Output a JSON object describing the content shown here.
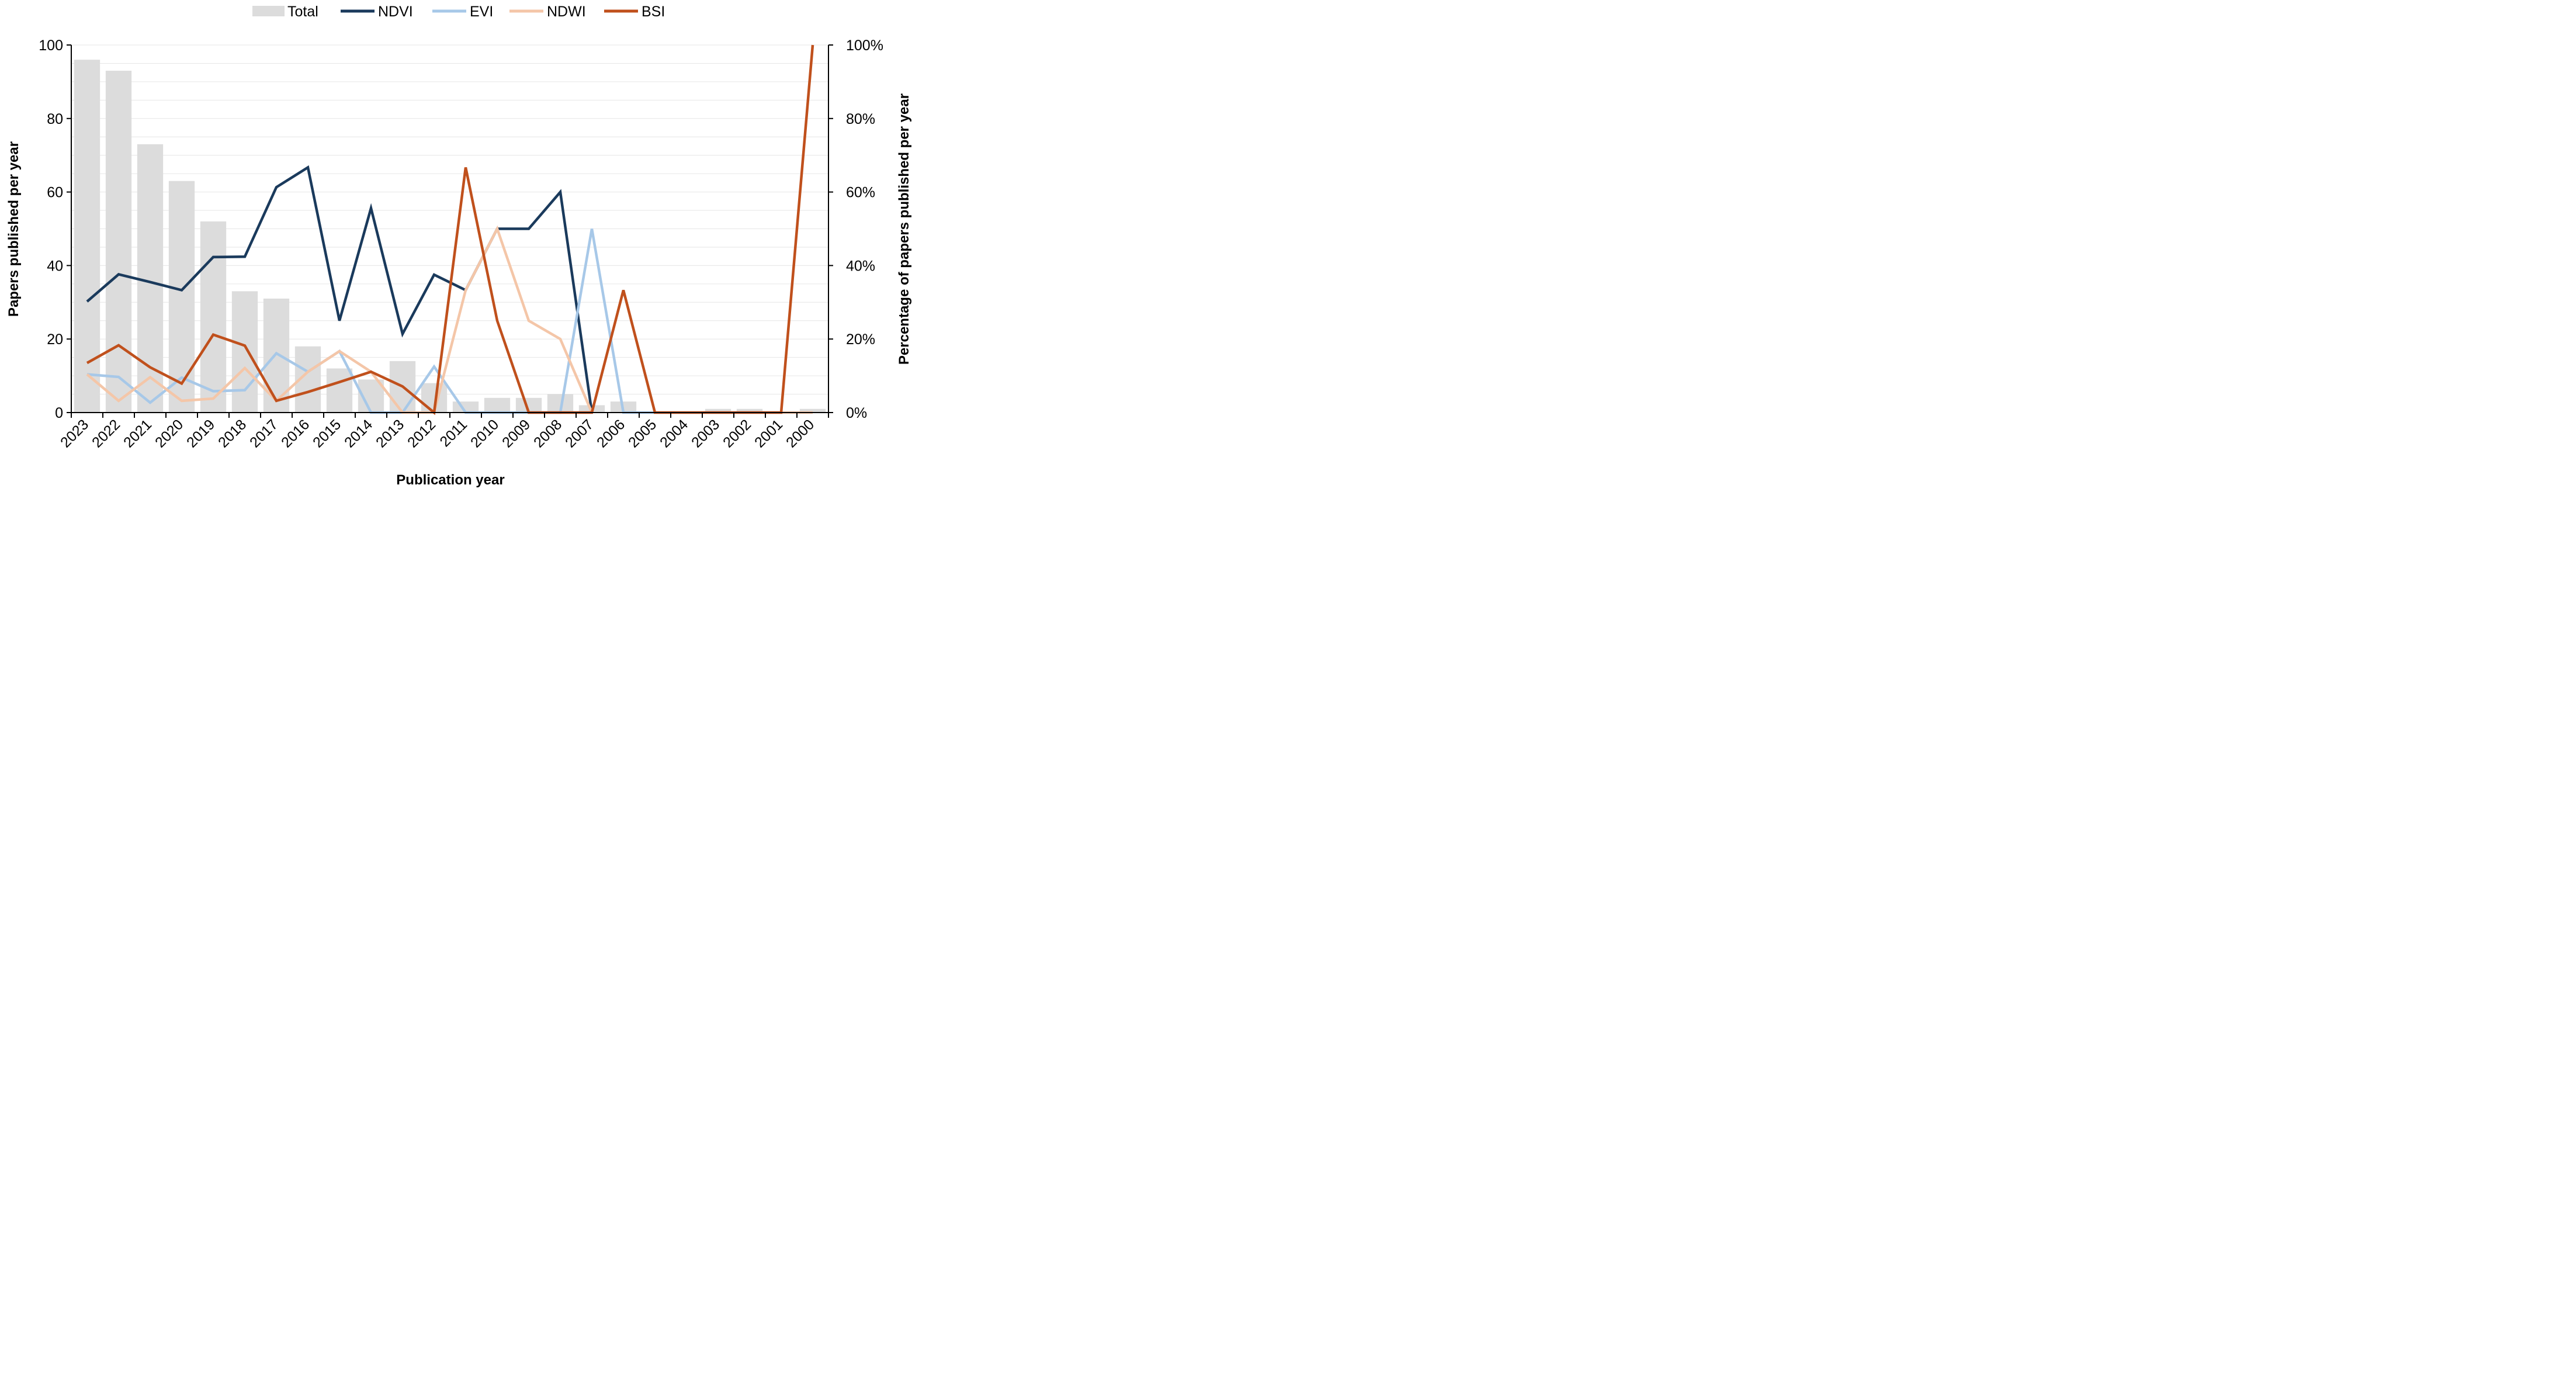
{
  "chart_data": {
    "type": "bar+line",
    "title": "",
    "xlabel": "Publication year",
    "ylabel_left": "Papers published per year",
    "ylabel_right": "Percentage of papers published per year",
    "ylim_left": [
      0,
      100
    ],
    "ylim_right": [
      0,
      100
    ],
    "yticks_left": [
      "0",
      "20",
      "40",
      "60",
      "80",
      "100"
    ],
    "yticks_right": [
      "0%",
      "20%",
      "40%",
      "60%",
      "80%",
      "100%"
    ],
    "grid": true,
    "legend_position": "top",
    "categories": [
      "2023",
      "2022",
      "2021",
      "2020",
      "2019",
      "2018",
      "2017",
      "2016",
      "2015",
      "2014",
      "2013",
      "2012",
      "2011",
      "2010",
      "2009",
      "2008",
      "2007",
      "2006",
      "2005",
      "2004",
      "2003",
      "2002",
      "2001",
      "2000"
    ],
    "bars": {
      "name": "Total",
      "color": "#dcdcdc",
      "axis": "left",
      "values": [
        96,
        93,
        73,
        63,
        52,
        33,
        31,
        18,
        12,
        9,
        14,
        8,
        3,
        4,
        4,
        5,
        2,
        3,
        0,
        0,
        1,
        1,
        0,
        1
      ]
    },
    "series": [
      {
        "name": "NDVI",
        "color": "#1a3a5c",
        "axis": "right",
        "values": [
          30.2,
          37.6,
          35.5,
          33.3,
          42.3,
          42.4,
          61.3,
          66.7,
          25.0,
          55.6,
          21.4,
          37.5,
          33.3,
          50.0,
          50.0,
          60.0,
          0,
          null,
          null,
          null,
          null,
          null,
          null,
          null
        ]
      },
      {
        "name": "EVI",
        "color": "#a7c8e8",
        "axis": "right",
        "values": [
          10.4,
          9.7,
          2.7,
          9.5,
          5.8,
          6.1,
          16.1,
          11.1,
          16.7,
          0,
          0,
          12.5,
          0,
          0,
          0,
          0,
          50.0,
          0,
          0,
          null,
          null,
          null,
          null,
          null
        ]
      },
      {
        "name": "NDWI",
        "color": "#f4c6a8",
        "axis": "right",
        "values": [
          10.4,
          3.2,
          9.6,
          3.2,
          3.8,
          12.1,
          3.2,
          11.1,
          16.7,
          11.1,
          0,
          0,
          33.3,
          50.0,
          25.0,
          20.0,
          0,
          null,
          null,
          null,
          null,
          null,
          0,
          0
        ]
      },
      {
        "name": "BSI",
        "color": "#c0501c",
        "axis": "right",
        "values": [
          13.5,
          18.3,
          12.3,
          7.9,
          21.2,
          18.2,
          3.2,
          5.6,
          8.3,
          11.1,
          7.1,
          0,
          66.7,
          25.0,
          0,
          0,
          0,
          33.3,
          0,
          0,
          0,
          0,
          0,
          100.0
        ]
      }
    ]
  }
}
